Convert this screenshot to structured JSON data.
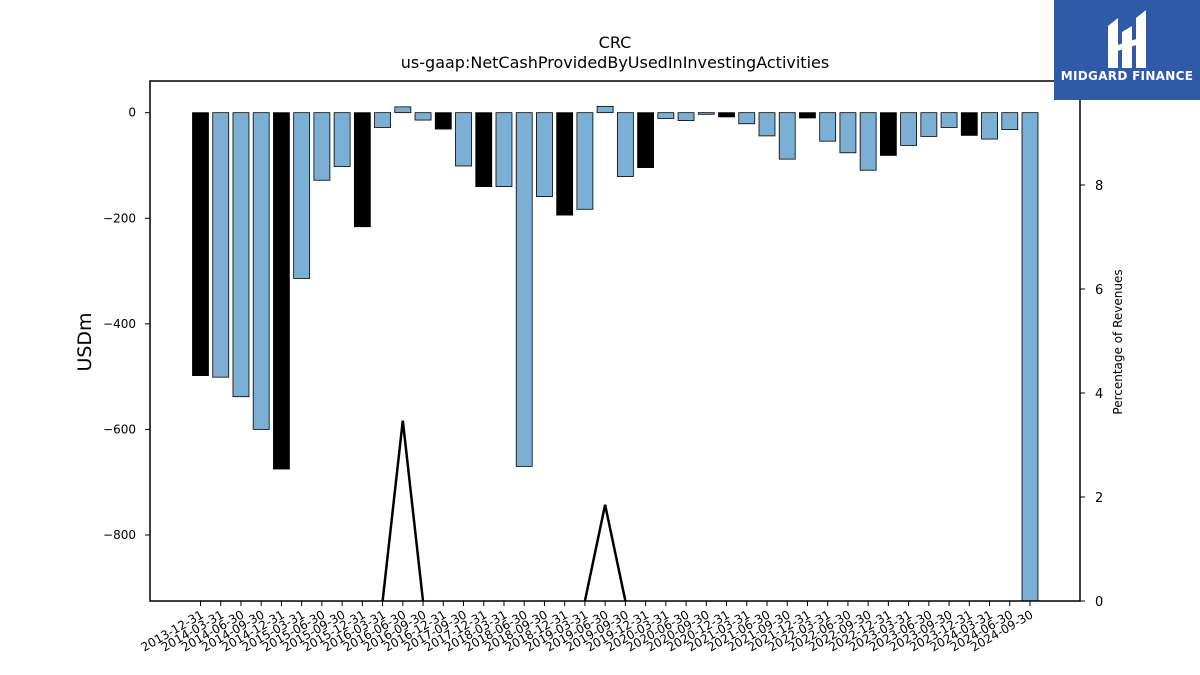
{
  "chart_data": {
    "type": "bar",
    "title": "CRC",
    "subtitle": "us-gaap:NetCashProvidedByUsedInInvestingActivities",
    "ylabel": "USDm",
    "y2label": "Percentage of Revenues",
    "ylim": [
      -925,
      60
    ],
    "y2lim": [
      0,
      10
    ],
    "yticks": [
      0,
      -200,
      -400,
      -600,
      -800
    ],
    "y2ticks": [
      0,
      2,
      4,
      6,
      8
    ],
    "grid": false,
    "colors": {
      "q4_bar": "#000000",
      "quarter_bar": "#7bafd4",
      "pct_line": "#000000"
    },
    "categories": [
      "2013-12-31",
      "2014-03-31",
      "2014-06-30",
      "2014-09-30",
      "2014-12-31",
      "2015-03-31",
      "2015-06-30",
      "2015-09-30",
      "2015-12-31",
      "2016-03-31",
      "2016-06-30",
      "2016-09-30",
      "2016-12-31",
      "2017-09-30",
      "2017-12-31",
      "2018-03-31",
      "2018-06-30",
      "2018-09-30",
      "2018-12-31",
      "2019-03-31",
      "2019-06-30",
      "2019-09-30",
      "2019-12-31",
      "2020-03-31",
      "2020-06-30",
      "2020-09-30",
      "2020-12-31",
      "2021-03-31",
      "2021-06-30",
      "2021-09-30",
      "2021-12-31",
      "2022-03-31",
      "2022-06-30",
      "2022-09-30",
      "2022-12-31",
      "2023-03-31",
      "2023-06-30",
      "2023-09-30",
      "2023-12-31",
      "2024-03-31",
      "2024-06-30",
      "2024-09-30"
    ],
    "values": [
      -498,
      -501,
      -538,
      -600,
      -675,
      -314,
      -128,
      -102,
      -216,
      -28,
      11,
      -14,
      -31,
      -101,
      -140,
      -140,
      -670,
      -159,
      -194,
      -183,
      12,
      -121,
      -104,
      -11,
      -15,
      -3,
      -8,
      -21,
      -44,
      -88,
      -10,
      -54,
      -76,
      -109,
      -81,
      -62,
      -45,
      -28,
      -43,
      -50,
      -32,
      -925
    ],
    "is_q4": [
      true,
      false,
      false,
      false,
      true,
      false,
      false,
      false,
      true,
      false,
      false,
      false,
      true,
      false,
      true,
      false,
      false,
      false,
      true,
      false,
      false,
      false,
      true,
      false,
      false,
      false,
      true,
      false,
      false,
      false,
      true,
      false,
      false,
      false,
      true,
      false,
      false,
      false,
      true,
      false,
      false,
      false
    ],
    "pct_of_revenues": [
      null,
      null,
      null,
      null,
      null,
      null,
      null,
      null,
      null,
      0,
      3.47,
      0,
      null,
      null,
      null,
      null,
      null,
      null,
      null,
      0,
      1.85,
      0,
      null,
      null,
      null,
      null,
      null,
      null,
      null,
      null,
      null,
      null,
      null,
      null,
      null,
      null,
      null,
      null,
      null,
      null,
      null,
      null
    ]
  },
  "logo": {
    "text": "MIDGARD FINANCE"
  }
}
